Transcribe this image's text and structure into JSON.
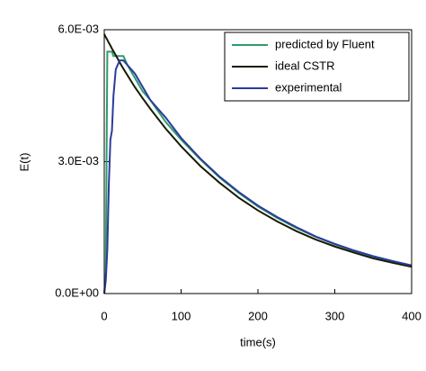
{
  "chart_data": {
    "type": "line",
    "xlabel": "time(s)",
    "ylabel": "E(t)",
    "x": [
      0,
      2,
      4,
      6,
      8,
      10,
      12,
      15,
      20,
      25,
      30,
      40,
      50,
      60,
      80,
      100,
      125,
      150,
      175,
      200,
      225,
      250,
      275,
      300,
      325,
      350,
      375,
      400
    ],
    "series": [
      {
        "name": "predicted by Fluent",
        "color": "#2e9c6a",
        "values": [
          0,
          0.0005,
          0.0055,
          0.0055,
          0.0055,
          0.0055,
          0.0054,
          0.0054,
          0.0054,
          0.0054,
          0.0052,
          0.0049,
          0.0046,
          0.0044,
          0.0039,
          0.0035,
          0.00305,
          0.00264,
          0.00229,
          0.00198,
          0.00172,
          0.00149,
          0.00129,
          0.00112,
          0.00097,
          0.00084,
          0.00073,
          0.00063
        ]
      },
      {
        "name": "ideal CSTR",
        "color": "#1a1a00",
        "values": [
          0.0059,
          0.00583,
          0.00577,
          0.0057,
          0.00564,
          0.00557,
          0.00551,
          0.00542,
          0.00526,
          0.00511,
          0.00497,
          0.00469,
          0.00444,
          0.0042,
          0.00375,
          0.00335,
          0.0029,
          0.00252,
          0.00218,
          0.00189,
          0.00164,
          0.00142,
          0.00123,
          0.00107,
          0.00093,
          0.0008,
          0.0007,
          0.00061
        ]
      },
      {
        "name": "experimental",
        "color": "#2b3c9c",
        "values": [
          0,
          0.0003,
          0.001,
          0.0025,
          0.0035,
          0.0037,
          0.0045,
          0.0051,
          0.0053,
          0.0053,
          0.0052,
          0.005,
          0.0047,
          0.0044,
          0.004,
          0.00354,
          0.00307,
          0.00266,
          0.00231,
          0.002,
          0.00174,
          0.00151,
          0.0013,
          0.00113,
          0.00098,
          0.00085,
          0.00074,
          0.00064
        ]
      }
    ],
    "xlim": [
      0,
      400
    ],
    "xticks": [
      0,
      100,
      200,
      300,
      400
    ],
    "ylim": [
      0,
      0.006
    ],
    "yticks": [
      {
        "value": 0,
        "label": "0.0E+00"
      },
      {
        "value": 0.003,
        "label": "3.0E-03"
      },
      {
        "value": 0.006,
        "label": "6.0E-03"
      }
    ],
    "grid": false,
    "legend": "upper right"
  }
}
